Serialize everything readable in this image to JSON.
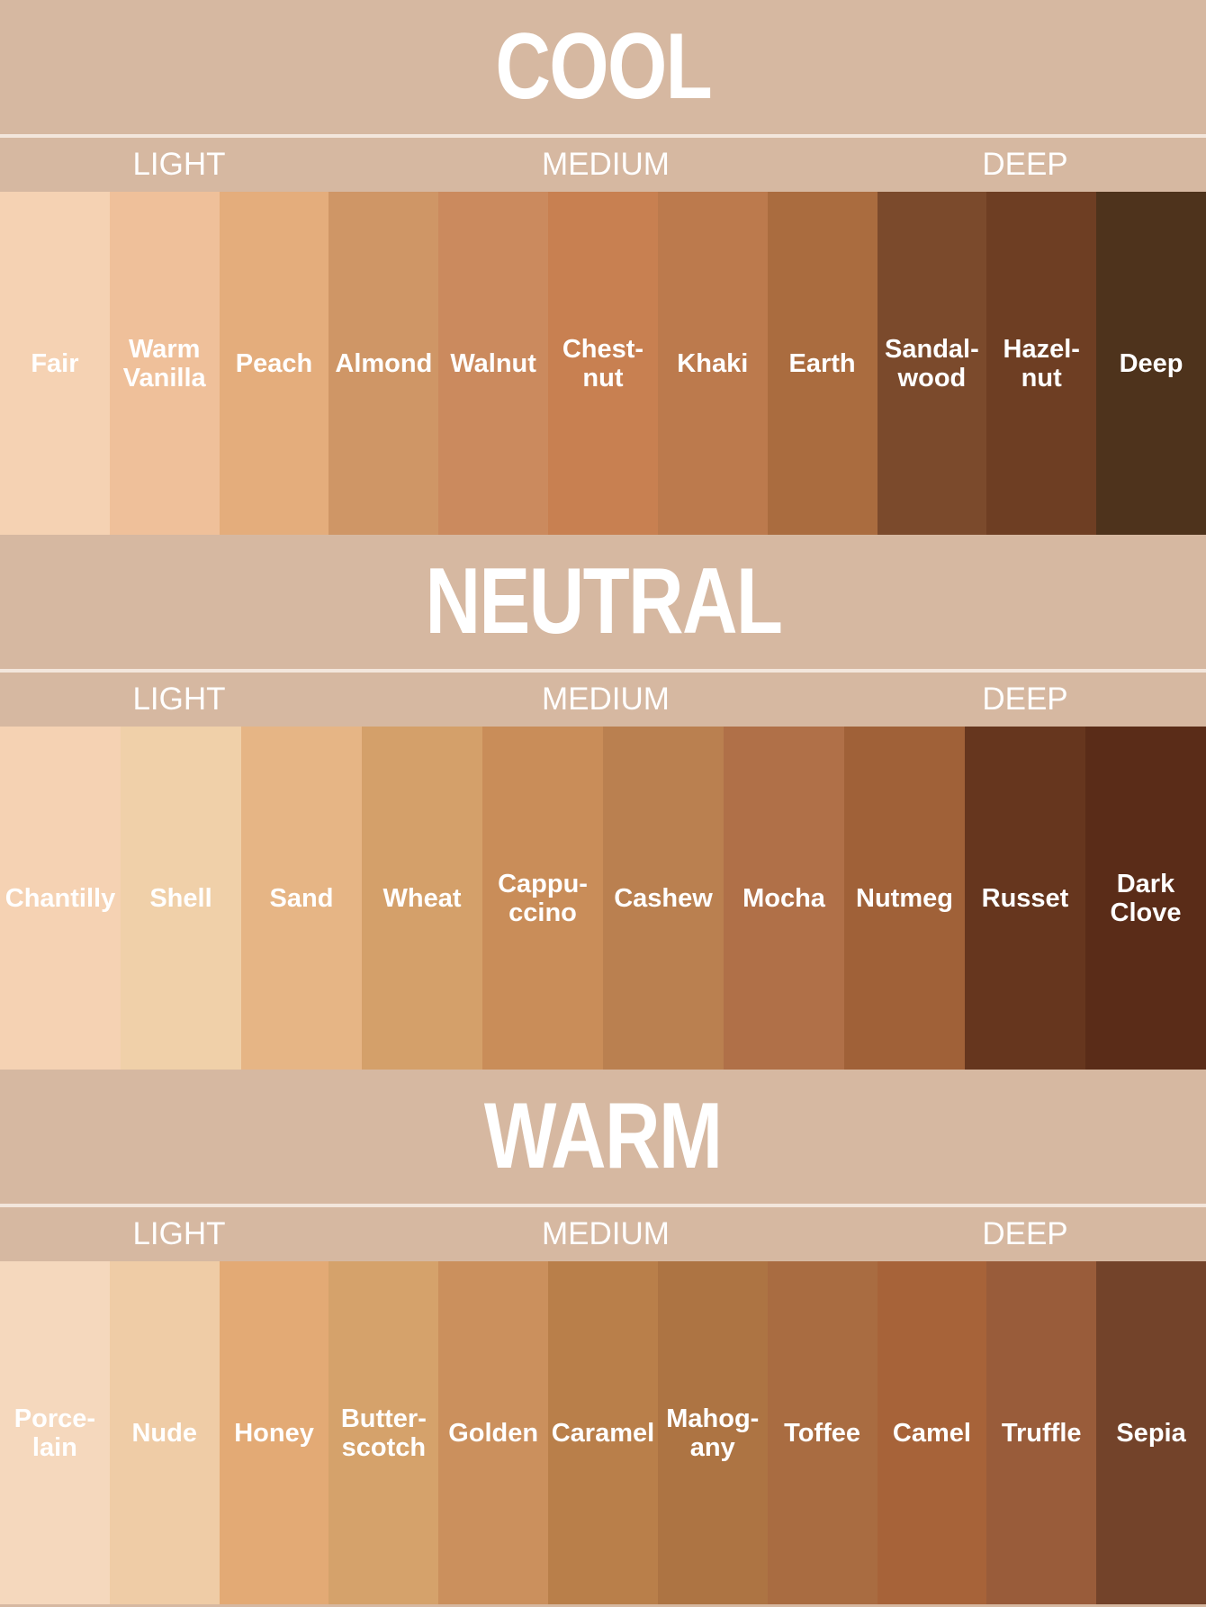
{
  "sections": [
    {
      "title": "COOL",
      "tiers": [
        "LIGHT",
        "MEDIUM",
        "DEEP"
      ],
      "swatches": [
        {
          "name": "Fair",
          "color": "#f5d2b3"
        },
        {
          "name": "Warm\nVanilla",
          "color": "#efc09a"
        },
        {
          "name": "Peach",
          "color": "#e4ad7c"
        },
        {
          "name": "Almond",
          "color": "#cf9666"
        },
        {
          "name": "Walnut",
          "color": "#cb8a5e"
        },
        {
          "name": "Chest-\nnut",
          "color": "#c88051"
        },
        {
          "name": "Khaki",
          "color": "#bc7a4d"
        },
        {
          "name": "Earth",
          "color": "#aa6c3f"
        },
        {
          "name": "Sandal-\nwood",
          "color": "#7b4a2c"
        },
        {
          "name": "Hazel-\nnut",
          "color": "#6e3e23"
        },
        {
          "name": "Deep",
          "color": "#4e331c"
        }
      ]
    },
    {
      "title": "NEUTRAL",
      "tiers": [
        "LIGHT",
        "MEDIUM",
        "DEEP"
      ],
      "swatches": [
        {
          "name": "Chantilly",
          "color": "#f5d2b3"
        },
        {
          "name": "Shell",
          "color": "#f0d0a9"
        },
        {
          "name": "Sand",
          "color": "#e6b585"
        },
        {
          "name": "Wheat",
          "color": "#d4a06a"
        },
        {
          "name": "Cappu-\nccino",
          "color": "#c98d59"
        },
        {
          "name": "Cashew",
          "color": "#ba8050"
        },
        {
          "name": "Mocha",
          "color": "#b07048"
        },
        {
          "name": "Nutmeg",
          "color": "#a06138"
        },
        {
          "name": "Russet",
          "color": "#66361e"
        },
        {
          "name": "Dark\nClove",
          "color": "#5a2c18"
        }
      ]
    },
    {
      "title": "WARM",
      "tiers": [
        "LIGHT",
        "MEDIUM",
        "DEEP"
      ],
      "swatches": [
        {
          "name": "Porce-\nlain",
          "color": "#f5d8bd"
        },
        {
          "name": "Nude",
          "color": "#efcca6"
        },
        {
          "name": "Honey",
          "color": "#e3aa75"
        },
        {
          "name": "Butter-\nscotch",
          "color": "#d5a26b"
        },
        {
          "name": "Golden",
          "color": "#cb905d"
        },
        {
          "name": "Caramel",
          "color": "#b97f4a"
        },
        {
          "name": "Mahog-\nany",
          "color": "#ad7443"
        },
        {
          "name": "Toffee",
          "color": "#a96c41"
        },
        {
          "name": "Camel",
          "color": "#a76339"
        },
        {
          "name": "Truffle",
          "color": "#995c3a"
        },
        {
          "name": "Sepia",
          "color": "#73432a"
        }
      ]
    }
  ]
}
